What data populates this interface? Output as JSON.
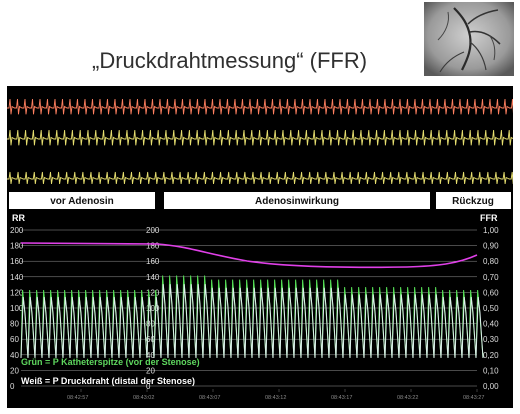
{
  "slide": {
    "title": "„Druckdrahtmessung“ (FFR)"
  },
  "angiogram": {
    "description_icon": "coronary-angiogram-icon"
  },
  "monitor": {
    "ecg_colors": [
      "#ff8060",
      "#e8e070",
      "#e8e070"
    ],
    "phases": [
      {
        "label": "vor Adenosin"
      },
      {
        "label": "Adenosinwirkung"
      },
      {
        "label": "Rückzug"
      }
    ],
    "left_axis_title": "RR",
    "right_axis_title": "FFR",
    "left_ticks": [
      "200",
      "180",
      "160",
      "140",
      "120",
      "100",
      "80",
      "60",
      "40",
      "20",
      "0"
    ],
    "mid_ticks": [
      "200",
      "180",
      "160",
      "140",
      "120",
      "100",
      "80",
      "60",
      "40",
      "20",
      "0"
    ],
    "right_ticks": [
      "1,00",
      "0,90",
      "0,80",
      "0,70",
      "0,60",
      "0,50",
      "0,40",
      "0,30",
      "0,20",
      "0,10",
      "0,00"
    ],
    "time_labels": [
      "08:42:57",
      "08:43:02",
      "08:43:07",
      "08:43:12",
      "08:43:17",
      "08:43:22",
      "08:43:27"
    ],
    "legend": {
      "green": "Grün = P Katheterspitze (vor der  Stenose)",
      "white": "Weiß = P Druckdraht  (distal der Stenose)"
    },
    "colors": {
      "background": "#000000",
      "aortic_pressure": "#55dd55",
      "distal_pressure": "#dfeeee",
      "ffr_curve": "#e040e8",
      "grid": "#bbbbbb"
    }
  }
}
